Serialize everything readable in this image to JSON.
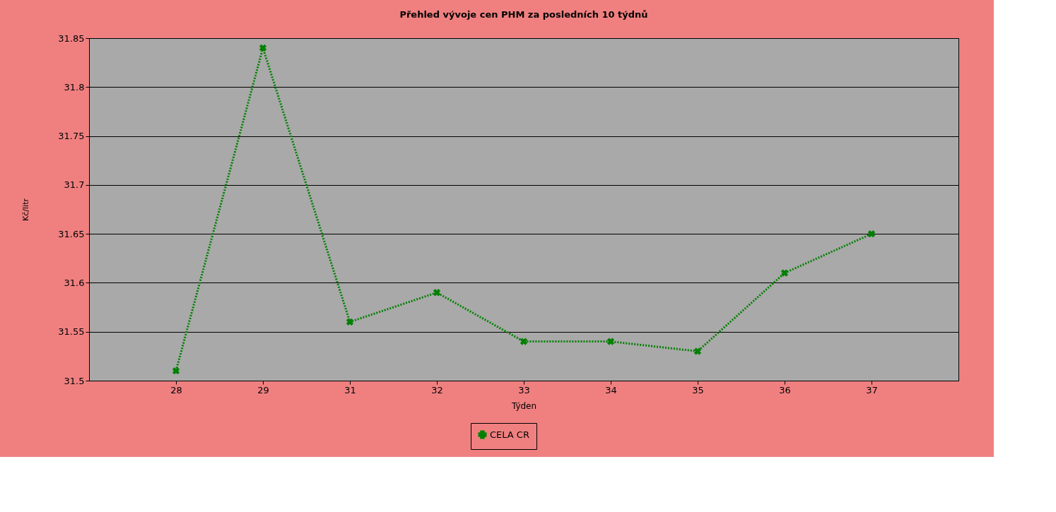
{
  "chart_data": {
    "type": "line",
    "title": "Přehled vývoje cen PHM  za posledních 10 týdnů",
    "xlabel": "Týden",
    "ylabel": "Kč/litr",
    "categories": [
      "28",
      "29",
      "31",
      "32",
      "33",
      "34",
      "35",
      "36",
      "37"
    ],
    "series": [
      {
        "name": "CELA CR",
        "color": "#008000",
        "values": [
          31.51,
          31.84,
          31.56,
          31.59,
          31.54,
          31.54,
          31.53,
          31.61,
          31.65
        ]
      }
    ],
    "ylim": [
      31.5,
      31.85
    ],
    "yticks": [
      31.5,
      31.55,
      31.6,
      31.65,
      31.7,
      31.75,
      31.8,
      31.85
    ],
    "grid": "y",
    "legend": "bottom",
    "marker": "cross",
    "line_style": "dotted"
  }
}
